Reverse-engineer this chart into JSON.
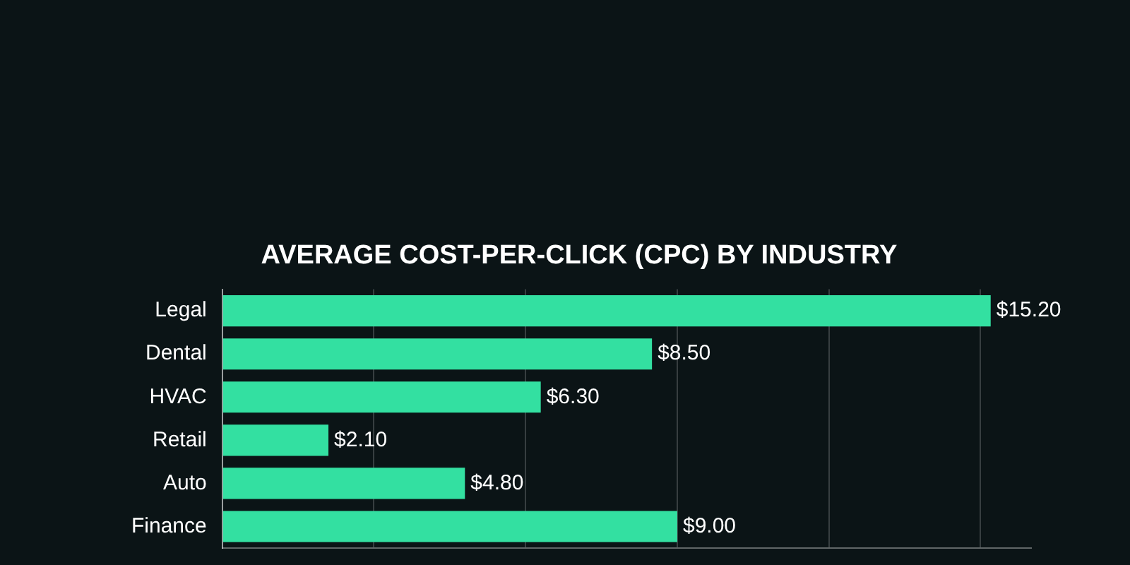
{
  "chart_data": {
    "type": "bar",
    "orientation": "horizontal",
    "title": "AVERAGE COST-PER-CLICK (CPC) BY INDUSTRY",
    "categories": [
      "Legal",
      "Dental",
      "HVAC",
      "Retail",
      "Auto",
      "Finance"
    ],
    "values": [
      15.2,
      8.5,
      6.3,
      2.1,
      4.8,
      9.0
    ],
    "value_labels": [
      "$15.20",
      "$8.50",
      "$6.30",
      "$2.10",
      "$4.80",
      "$9.00"
    ],
    "color": "#33e0a1",
    "xlim": [
      0,
      16
    ],
    "xticks": [
      {
        "value": 0,
        "label": null
      },
      {
        "value": 3,
        "label": null
      },
      {
        "value": 6,
        "label": null
      },
      {
        "value": 9,
        "label": null
      },
      {
        "value": 12,
        "label": null
      },
      {
        "value": 15,
        "label": null
      }
    ],
    "grid": "x",
    "tick_labels": "y",
    "legend": false
  }
}
